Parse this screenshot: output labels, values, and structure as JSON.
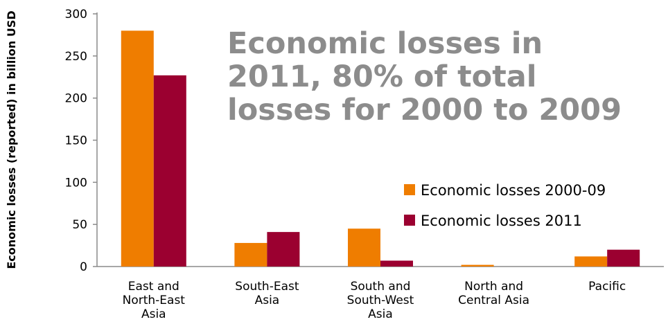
{
  "chart_data": {
    "type": "bar",
    "ylabel": "Economic losses (reported) in billion USD",
    "xlabel": "",
    "ylim": [
      0,
      300
    ],
    "yticks": [
      0,
      50,
      100,
      150,
      200,
      250,
      300
    ],
    "grid": false,
    "legend_position": "right",
    "annotation": [
      "Economic losses in",
      "2011, 80% of total",
      "losses for 2000 to 2009"
    ],
    "categories": [
      [
        "East and",
        "North-East",
        "Asia"
      ],
      [
        "South-East",
        "Asia"
      ],
      [
        "South and",
        "South-West",
        "Asia"
      ],
      [
        "North and",
        "Central Asia"
      ],
      [
        "Pacific"
      ]
    ],
    "series": [
      {
        "name": "Economic losses 2000-09",
        "color": "#ef7d00",
        "values": [
          280,
          28,
          45,
          2,
          12
        ]
      },
      {
        "name": "Economic losses 2011",
        "color": "#9b0030",
        "values": [
          227,
          41,
          7,
          0,
          20
        ]
      }
    ]
  }
}
